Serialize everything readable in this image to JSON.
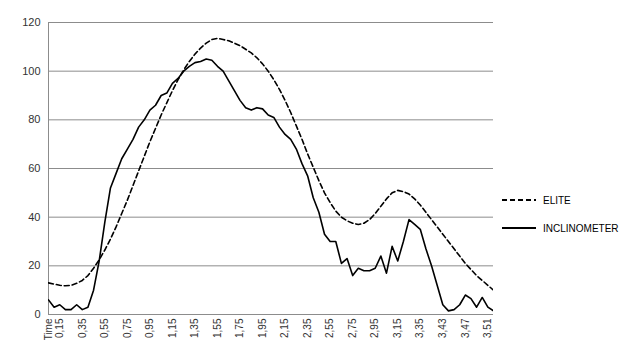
{
  "chart_data": {
    "type": "line",
    "categories": [
      "Time",
      null,
      "0,15",
      null,
      null,
      null,
      "0,35",
      null,
      null,
      null,
      "0,55",
      null,
      null,
      null,
      "0,75",
      null,
      null,
      null,
      "0,95",
      null,
      null,
      null,
      "1,15",
      null,
      null,
      null,
      "1,35",
      null,
      null,
      null,
      "1,55",
      null,
      null,
      null,
      "1,75",
      null,
      null,
      null,
      "1,95",
      null,
      null,
      null,
      "2,15",
      null,
      null,
      null,
      "2,35",
      null,
      null,
      null,
      "2,55",
      null,
      null,
      null,
      "2,75",
      null,
      null,
      null,
      "2,95",
      null,
      null,
      null,
      "3,15",
      null,
      null,
      null,
      "3,35",
      null,
      null,
      null,
      "3,43",
      null,
      null,
      null,
      "3,47",
      null,
      null,
      null,
      "3,51",
      null
    ],
    "series": [
      {
        "name": "ELITE",
        "color": "#000000",
        "line_style": "dashed",
        "values": [
          13,
          12.5,
          12,
          11.8,
          12,
          12.8,
          14,
          16,
          19,
          22.5,
          26.5,
          31,
          36,
          41.5,
          47,
          53,
          59,
          65,
          71,
          76.5,
          82,
          87,
          92,
          96.5,
          100.5,
          104,
          107,
          109.5,
          111.5,
          113,
          113.5,
          113,
          112.5,
          111.5,
          110.5,
          109,
          107.5,
          105.5,
          103,
          100,
          96.5,
          92.5,
          88,
          83,
          77.5,
          72,
          66,
          60.5,
          55,
          50,
          46,
          42.5,
          40,
          38.5,
          37.5,
          37,
          37.5,
          39,
          41.5,
          44.5,
          47.5,
          50,
          51,
          50.5,
          49.5,
          47.5,
          45,
          42,
          39,
          36,
          33,
          30,
          27,
          24,
          21,
          18.5,
          16,
          14,
          12,
          10
        ]
      },
      {
        "name": "INCLINOMETER",
        "color": "#000000",
        "line_style": "solid",
        "values": [
          6,
          3,
          4,
          2,
          2,
          4,
          2,
          3,
          10,
          22,
          38,
          52,
          58,
          64,
          68,
          72,
          77,
          80,
          84,
          86,
          90,
          91,
          95,
          97,
          100,
          102,
          103.5,
          104,
          105,
          104.5,
          102,
          100,
          96,
          92,
          88,
          85,
          84,
          85,
          84.5,
          82,
          81,
          77,
          74,
          72,
          68,
          62,
          57,
          48,
          42,
          33,
          30,
          30,
          21,
          23,
          16,
          19,
          18,
          18,
          19,
          24,
          17,
          28,
          22,
          30,
          39,
          37,
          35,
          27,
          20,
          12,
          4,
          1.5,
          2,
          4,
          8,
          6.5,
          3,
          7,
          3,
          1.5
        ]
      }
    ],
    "ylim": [
      0,
      120
    ],
    "yticks": [
      0,
      20,
      40,
      60,
      80,
      100,
      120
    ],
    "grid": true,
    "legend": "right"
  }
}
